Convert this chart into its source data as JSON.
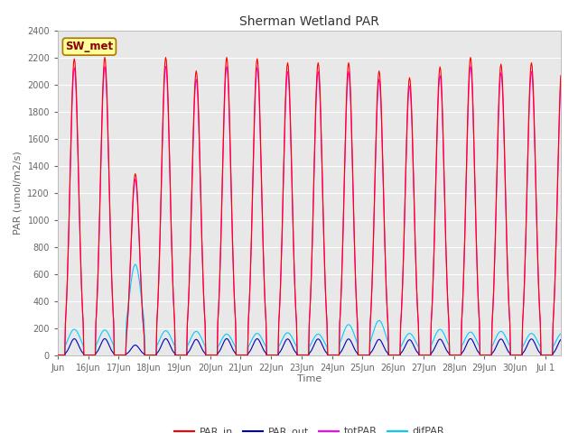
{
  "title": "Sherman Wetland PAR",
  "ylabel": "PAR (umol/m2/s)",
  "xlabel": "Time",
  "ylim": [
    0,
    2400
  ],
  "yticks": [
    0,
    200,
    400,
    600,
    800,
    1000,
    1200,
    1400,
    1600,
    1800,
    2000,
    2200,
    2400
  ],
  "colors": {
    "PAR_in": "#ff0000",
    "PAR_out": "#0000bb",
    "totPAR": "#ff00ff",
    "difPAR": "#00ccff"
  },
  "annotation_text": "SW_met",
  "annotation_bg": "#ffff99",
  "annotation_border": "#aa7700",
  "annotation_text_color": "#880000",
  "plot_bg": "#e8e8e8",
  "grid_color": "#ffffff",
  "fig_bg": "#ffffff",
  "linewidth": 0.8,
  "title_fontsize": 10,
  "label_fontsize": 8,
  "tick_fontsize": 7,
  "legend_fontsize": 8
}
